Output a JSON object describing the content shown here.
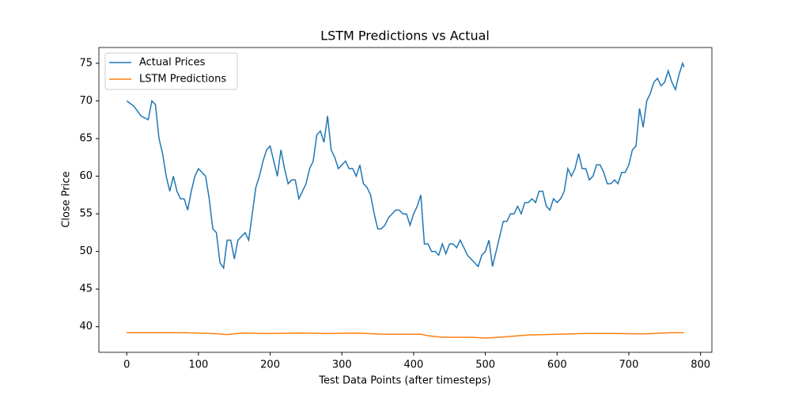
{
  "chart_data": {
    "type": "line",
    "title": "LSTM Predictions vs Actual",
    "xlabel": "Test Data Points (after timesteps)",
    "ylabel": "Close Price",
    "xlim": [
      -38.85,
      815.85
    ],
    "ylim": [
      36.6,
      77.1
    ],
    "xticks": [
      0,
      100,
      200,
      300,
      400,
      500,
      600,
      700,
      800
    ],
    "yticks": [
      40,
      45,
      50,
      55,
      60,
      65,
      70,
      75
    ],
    "legend": "upper left",
    "series": [
      {
        "name": "Actual Prices",
        "color": "#1f77b4",
        "x": [
          0,
          10,
          20,
          30,
          35,
          40,
          45,
          50,
          55,
          60,
          65,
          70,
          75,
          80,
          85,
          90,
          95,
          100,
          110,
          115,
          120,
          125,
          130,
          135,
          140,
          145,
          150,
          155,
          160,
          165,
          170,
          175,
          180,
          185,
          190,
          195,
          200,
          205,
          210,
          215,
          220,
          225,
          230,
          235,
          240,
          245,
          250,
          255,
          260,
          265,
          270,
          275,
          280,
          285,
          290,
          295,
          300,
          305,
          310,
          315,
          320,
          325,
          330,
          335,
          340,
          345,
          350,
          355,
          360,
          365,
          370,
          375,
          380,
          385,
          390,
          395,
          400,
          405,
          410,
          415,
          420,
          425,
          430,
          435,
          440,
          445,
          450,
          455,
          460,
          465,
          470,
          475,
          480,
          485,
          490,
          495,
          500,
          505,
          510,
          515,
          520,
          525,
          530,
          535,
          540,
          545,
          550,
          555,
          560,
          565,
          570,
          575,
          580,
          585,
          590,
          595,
          600,
          605,
          610,
          615,
          620,
          625,
          630,
          635,
          640,
          645,
          650,
          655,
          660,
          665,
          670,
          675,
          680,
          685,
          690,
          695,
          700,
          705,
          710,
          715,
          720,
          725,
          730,
          735,
          740,
          745,
          750,
          755,
          760,
          765,
          770,
          775,
          777
        ],
        "values": [
          70,
          69.3,
          68,
          67.5,
          70,
          69.5,
          65,
          63,
          60,
          58,
          60,
          58,
          57,
          57,
          55.5,
          58,
          60,
          61,
          60,
          57,
          53,
          52.5,
          48.5,
          47.8,
          51.5,
          51.5,
          49,
          51.5,
          52,
          52.5,
          51.5,
          55,
          58.5,
          60,
          62,
          63.5,
          64,
          62,
          60,
          63.5,
          61,
          59,
          59.5,
          59.5,
          57,
          58,
          59,
          61,
          62,
          65.5,
          66,
          64.5,
          68,
          63.5,
          62.5,
          61,
          61.5,
          62,
          61,
          61,
          60,
          61.5,
          59,
          58.5,
          57.5,
          55,
          53,
          53,
          53.5,
          54.5,
          55,
          55.5,
          55.5,
          55,
          55,
          53.5,
          55,
          56,
          57.5,
          51,
          51,
          50,
          50,
          49.5,
          51,
          49.7,
          51,
          51,
          50.5,
          51.5,
          50.5,
          49.5,
          49,
          48.5,
          48,
          49.5,
          50,
          51.5,
          48,
          50,
          52,
          54,
          54,
          55,
          55,
          56,
          55,
          56.5,
          56.5,
          57,
          56.5,
          58,
          58,
          56,
          55.5,
          57,
          56.5,
          57,
          58,
          61,
          60,
          61,
          63,
          61,
          61,
          59.5,
          60,
          61.5,
          61.5,
          60.5,
          59,
          59,
          59.5,
          59,
          60.5,
          60.5,
          61.5,
          63.5,
          64,
          69,
          66.5,
          70,
          71,
          72.5,
          73,
          72,
          72.5,
          74,
          72.5,
          71.5,
          73.5,
          75,
          74.5
        ]
      },
      {
        "name": "LSTM Predictions",
        "color": "#ff7f0e",
        "x": [
          0,
          40,
          80,
          120,
          140,
          160,
          200,
          240,
          280,
          320,
          360,
          400,
          410,
          420,
          440,
          480,
          500,
          520,
          560,
          600,
          640,
          680,
          720,
          760,
          777
        ],
        "values": [
          39.2,
          39.2,
          39.2,
          39.1,
          38.95,
          39.15,
          39.1,
          39.15,
          39.1,
          39.15,
          39.0,
          39.0,
          39.0,
          38.8,
          38.6,
          38.6,
          38.5,
          38.6,
          38.9,
          39.0,
          39.1,
          39.1,
          39.05,
          39.2,
          39.2
        ]
      }
    ]
  }
}
